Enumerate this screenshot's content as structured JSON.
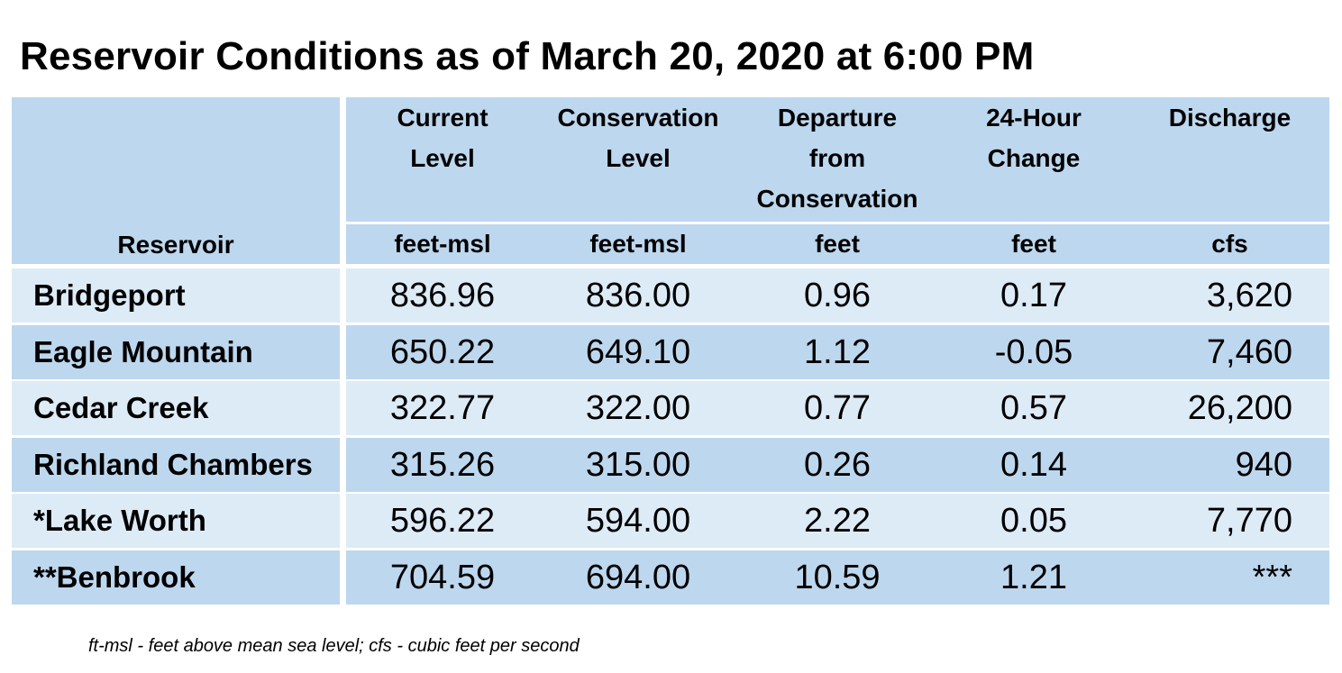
{
  "title": "Reservoir Conditions as of March 20, 2020 at 6:00 PM",
  "colors": {
    "header_bg": "#bdd7ee",
    "row_light": "#ddebf7",
    "row_dark": "#bdd7ee"
  },
  "headers": [
    {
      "label": "Reservoir",
      "unit": ""
    },
    {
      "label": "Current\nLevel",
      "unit": "feet-msl"
    },
    {
      "label": "Conservation\nLevel",
      "unit": "feet-msl"
    },
    {
      "label": "Departure\nfrom\nConservation",
      "unit": "feet"
    },
    {
      "label": "24-Hour\nChange",
      "unit": "feet"
    },
    {
      "label": "Discharge",
      "unit": "cfs"
    }
  ],
  "rows": [
    {
      "name": "Bridgeport",
      "current": "836.96",
      "conservation": "836.00",
      "departure": "0.96",
      "change": "0.17",
      "discharge": "3,620"
    },
    {
      "name": "Eagle Mountain",
      "current": "650.22",
      "conservation": "649.10",
      "departure": "1.12",
      "change": "-0.05",
      "discharge": "7,460"
    },
    {
      "name": "Cedar Creek",
      "current": "322.77",
      "conservation": "322.00",
      "departure": "0.77",
      "change": "0.57",
      "discharge": "26,200"
    },
    {
      "name": "Richland Chambers",
      "current": "315.26",
      "conservation": "315.00",
      "departure": "0.26",
      "change": "0.14",
      "discharge": "940"
    },
    {
      "name": "*Lake Worth",
      "current": "596.22",
      "conservation": "594.00",
      "departure": "2.22",
      "change": "0.05",
      "discharge": "7,770"
    },
    {
      "name": "**Benbrook",
      "current": "704.59",
      "conservation": "694.00",
      "departure": "10.59",
      "change": "1.21",
      "discharge": "***"
    }
  ],
  "footnote": "ft-msl - feet above mean sea level; cfs - cubic feet per second"
}
